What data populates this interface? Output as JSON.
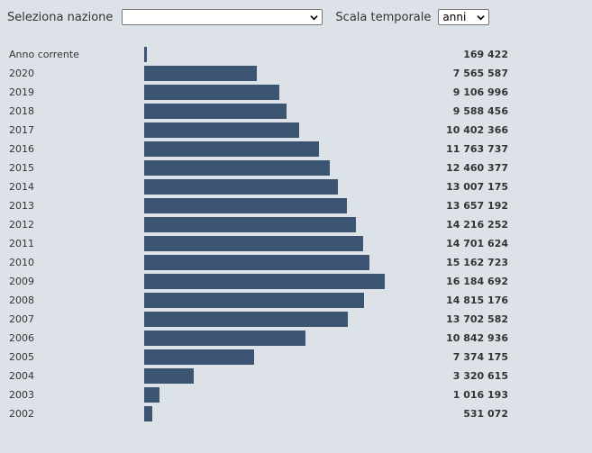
{
  "controls": {
    "nation_label": "Seleziona nazione",
    "nation_value": "",
    "scale_label": "Scala temporale",
    "scale_value": "anni"
  },
  "colors": {
    "background": "#dde2e9",
    "bar": "#3b5472"
  },
  "chart_data": {
    "type": "bar",
    "orientation": "horizontal",
    "categories": [
      "Anno corrente",
      "2020",
      "2019",
      "2018",
      "2017",
      "2016",
      "2015",
      "2014",
      "2013",
      "2012",
      "2011",
      "2010",
      "2009",
      "2008",
      "2007",
      "2006",
      "2005",
      "2004",
      "2003",
      "2002"
    ],
    "values": [
      169422,
      7565587,
      9106996,
      9588456,
      10402366,
      11763737,
      12460377,
      13007175,
      13657192,
      14216252,
      14701624,
      15162723,
      16184692,
      14815176,
      13702582,
      10842936,
      7374175,
      3320615,
      1016193,
      531072
    ],
    "value_labels": [
      "169 422",
      "7 565 587",
      "9 106 996",
      "9 588 456",
      "10 402 366",
      "11 763 737",
      "12 460 377",
      "13 007 175",
      "13 657 192",
      "14 216 252",
      "14 701 624",
      "15 162 723",
      "16 184 692",
      "14 815 176",
      "13 702 582",
      "10 842 936",
      "7 374 175",
      "3 320 615",
      "1 016 193",
      "531 072"
    ],
    "xlim": [
      0,
      16184692
    ],
    "grid": false,
    "legend": "none"
  }
}
